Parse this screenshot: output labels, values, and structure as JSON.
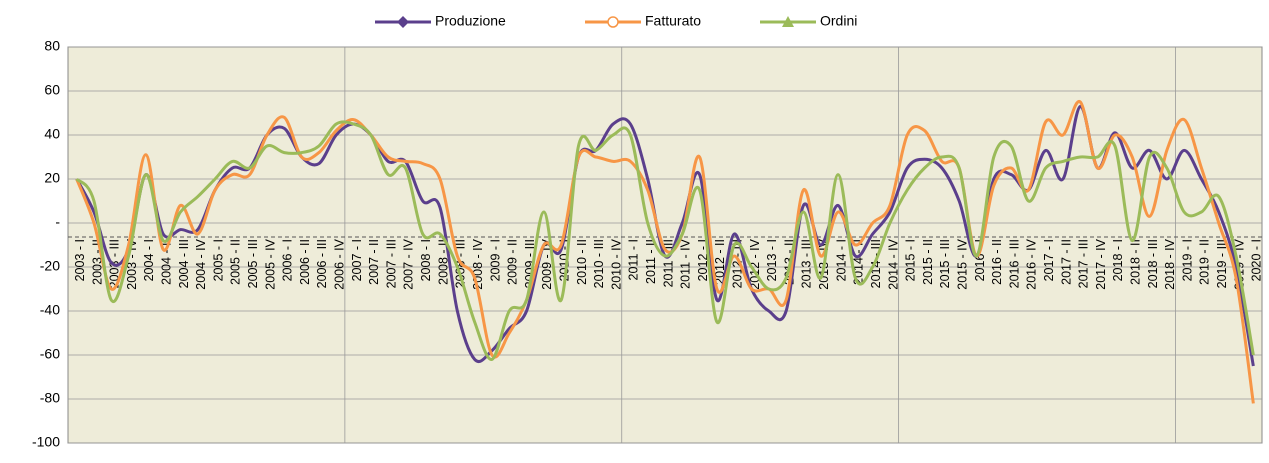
{
  "chart_data": {
    "type": "line",
    "categories": [
      "2003 - I",
      "2003 - II",
      "2003 - III",
      "2003 - IV",
      "2004 - I",
      "2004 - II",
      "2004 - III",
      "2004 - IV",
      "2005 - I",
      "2005 - II",
      "2005 - III",
      "2005 - IV",
      "2006 - I",
      "2006 - II",
      "2006 - III",
      "2006 - IV",
      "2007 - I",
      "2007 - II",
      "2007 - III",
      "2007 - IV",
      "2008 - I",
      "2008 - II",
      "2008 - III",
      "2008 - IV",
      "2009 - I",
      "2009 - II",
      "2009 - III",
      "2009 - IV",
      "2010 - I",
      "2010 - II",
      "2010 - III",
      "2010 - IV",
      "2011 - I",
      "2011 - II",
      "2011 - III",
      "2011 - IV",
      "2012 - I",
      "2012 - II",
      "2012 - III",
      "2012 - IV",
      "2013 - I",
      "2013 - II",
      "2013 - III",
      "2013 - IV",
      "2014 - I",
      "2014 - II",
      "2014 - III",
      "2014 - IV",
      "2015 - I",
      "2015 - II",
      "2015 - III",
      "2015 - IV",
      "2016 - I",
      "2016 - II",
      "2016 - III",
      "2016 - IV",
      "2017 - I",
      "2017 - II",
      "2017 - III",
      "2017 - IV",
      "2018 - I",
      "2018 - II",
      "2018 - III",
      "2018 - IV",
      "2019 - I",
      "2019 - II",
      "2019 - III",
      "2019 - IV",
      "2020 - I"
    ],
    "series": [
      {
        "name": "Produzione",
        "color": "#5b3f8c",
        "values": [
          20,
          5,
          -18,
          -12,
          22,
          -5,
          -3,
          -3,
          15,
          25,
          25,
          40,
          43,
          30,
          27,
          40,
          45,
          40,
          28,
          28,
          10,
          7,
          -40,
          -62,
          -58,
          -48,
          -40,
          -10,
          -12,
          30,
          33,
          45,
          45,
          20,
          -15,
          0,
          22,
          -35,
          -5,
          -30,
          -40,
          -40,
          8,
          -10,
          8,
          -15,
          -5,
          5,
          25,
          29,
          25,
          10,
          -15,
          20,
          22,
          15,
          33,
          20,
          53,
          25,
          41,
          25,
          33,
          20,
          33,
          20,
          5,
          -20,
          -65
        ]
      },
      {
        "name": "Fatturato",
        "color": "#f79646",
        "values": [
          20,
          0,
          -30,
          -10,
          31,
          -12,
          8,
          -5,
          15,
          22,
          22,
          40,
          48,
          30,
          32,
          42,
          47,
          40,
          30,
          28,
          27,
          20,
          -15,
          -25,
          -60,
          -50,
          -35,
          -10,
          -10,
          30,
          30,
          28,
          28,
          15,
          -12,
          -5,
          30,
          -30,
          -15,
          -30,
          -30,
          -35,
          15,
          -15,
          5,
          -10,
          0,
          8,
          40,
          42,
          28,
          25,
          -15,
          17,
          25,
          15,
          46,
          40,
          55,
          25,
          40,
          30,
          3,
          33,
          47,
          25,
          0,
          -25,
          -82
        ]
      },
      {
        "name": "Ordini",
        "color": "#9bbb59",
        "values": [
          20,
          10,
          -35,
          -15,
          22,
          -8,
          5,
          12,
          20,
          28,
          25,
          35,
          32,
          32,
          35,
          45,
          45,
          40,
          22,
          25,
          -5,
          -5,
          -20,
          -45,
          -62,
          -40,
          -35,
          5,
          -35,
          35,
          33,
          40,
          40,
          0,
          -15,
          -5,
          15,
          -45,
          -10,
          -20,
          -30,
          -25,
          5,
          -25,
          22,
          -25,
          -20,
          0,
          15,
          25,
          30,
          25,
          -15,
          30,
          35,
          10,
          25,
          28,
          30,
          30,
          35,
          -8,
          30,
          25,
          5,
          5,
          12,
          -15,
          -60
        ]
      }
    ],
    "ylim": [
      -100,
      80
    ],
    "yticks": [
      -100,
      -80,
      -60,
      -40,
      -20,
      {
        "value": 0,
        "label": "-"
      },
      20,
      40,
      60,
      80
    ],
    "grid": true,
    "legend": "top"
  }
}
